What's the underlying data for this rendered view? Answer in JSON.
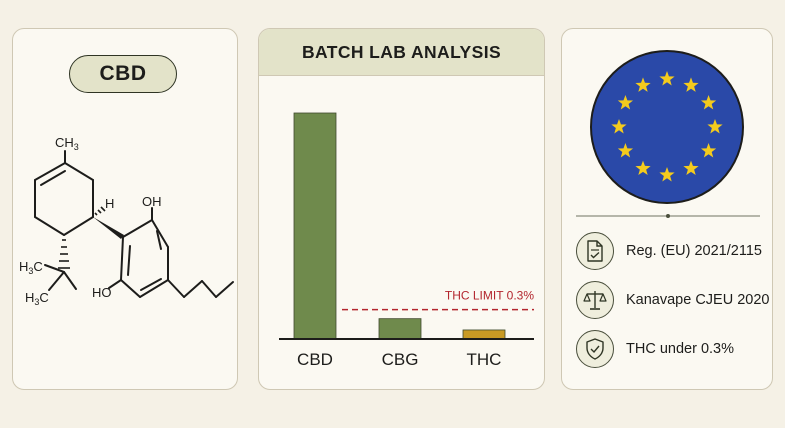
{
  "molecule_panel": {
    "title": "CBD",
    "atom_labels": {
      "ch3": "CH",
      "ch3_sub": "3",
      "h": "H",
      "oh_top": "OH",
      "oh_bottom": "HO",
      "h3c_top_h": "H",
      "h3c_top_sub": "3",
      "h3c_top_c": "C",
      "h3c_bot_h": "H",
      "h3c_bot_sub": "3",
      "h3c_bot_c": "C"
    }
  },
  "chart_panel": {
    "header": "BATCH LAB ANALYSIS"
  },
  "chart_data": {
    "type": "bar",
    "title": "BATCH LAB ANALYSIS",
    "categories": [
      "CBD",
      "CBG",
      "THC"
    ],
    "values": [
      100,
      9,
      4
    ],
    "colors": [
      "#6f8a4c",
      "#6f8a4c",
      "#c99a24"
    ],
    "ylim": [
      0,
      100
    ],
    "reference_line": {
      "label": "THC LIMIT 0.3%",
      "value": 13,
      "color": "#b3262e",
      "style": "dashed"
    },
    "grid": false,
    "xlabel": "",
    "ylabel": ""
  },
  "compliance_panel": {
    "flag_icon": "eu-flag",
    "colors": {
      "flag_blue": "#2a49a8",
      "star_yellow": "#f4cb1d"
    },
    "items": [
      {
        "icon": "document-check-icon",
        "label": "Reg. (EU) 2021/2115"
      },
      {
        "icon": "scales-icon",
        "label": "Kanavape CJEU 2020"
      },
      {
        "icon": "shield-check-icon",
        "label": "THC under 0.3%"
      }
    ]
  }
}
